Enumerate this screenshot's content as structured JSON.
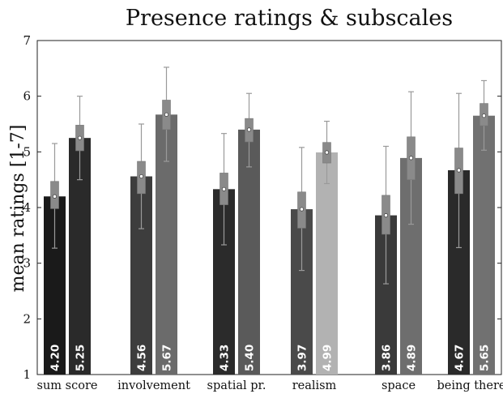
{
  "chart_data": {
    "type": "bar",
    "title": "Presence ratings & subscales",
    "xlabel": "",
    "ylabel": "mean ratings [1-7]",
    "ylim": [
      1,
      7
    ],
    "yticks": [
      "1",
      "2",
      "3",
      "4",
      "5",
      "6",
      "7"
    ],
    "grid": false,
    "categories": [
      "sum score",
      "involvement",
      "spatial pr.",
      "realism",
      "space",
      "being there"
    ],
    "series": [
      {
        "values": [
          4.2,
          4.56,
          4.33,
          3.97,
          3.86,
          4.67
        ],
        "labels": [
          "4.20",
          "4.56",
          "4.33",
          "3.97",
          "3.86",
          "4.67"
        ],
        "colors": [
          "#1a1a1a",
          "#3d3d3d",
          "#2b2b2b",
          "#4a4a4a",
          "#3a3a3a",
          "#2a2a2a"
        ],
        "whisker_low": [
          3.27,
          3.62,
          3.33,
          2.87,
          2.63,
          3.28
        ],
        "whisker_high": [
          5.15,
          5.5,
          5.33,
          5.08,
          5.1,
          6.05
        ],
        "box_low": [
          3.98,
          4.25,
          4.05,
          3.63,
          3.52,
          4.25
        ],
        "box_high": [
          4.47,
          4.83,
          4.62,
          4.28,
          4.22,
          5.07
        ]
      },
      {
        "values": [
          5.25,
          5.67,
          5.4,
          4.99,
          4.89,
          5.65
        ],
        "labels": [
          "5.25",
          "5.67",
          "5.40",
          "4.99",
          "4.89",
          "5.65"
        ],
        "colors": [
          "#2a2a2a",
          "#6b6b6b",
          "#5a5a5a",
          "#b2b2b2",
          "#6e6e6e",
          "#717171"
        ],
        "whisker_low": [
          4.5,
          4.83,
          4.73,
          4.43,
          3.7,
          5.03
        ],
        "whisker_high": [
          6.0,
          6.52,
          6.05,
          5.55,
          6.08,
          6.28
        ],
        "box_low": [
          5.02,
          5.4,
          5.18,
          4.8,
          4.5,
          5.47
        ],
        "box_high": [
          5.48,
          5.93,
          5.6,
          5.17,
          5.27,
          5.87
        ]
      }
    ],
    "colors": {
      "whisker": "#9a9a9a",
      "box": "#8a8a8a",
      "axis": "#222222"
    }
  }
}
